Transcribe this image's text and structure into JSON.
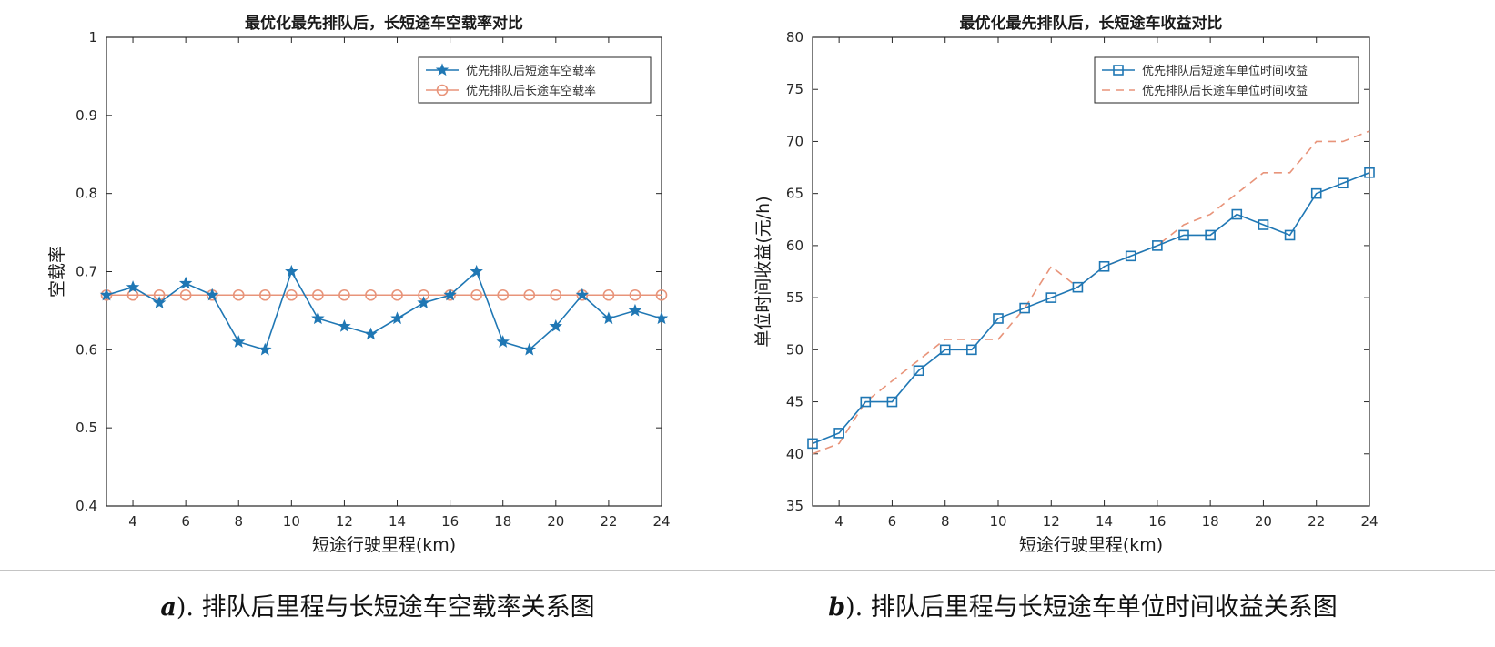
{
  "colors": {
    "blue": "#1f77b4",
    "orange": "#e8947a",
    "axis": "#262626",
    "separator": "#b0b0b0"
  },
  "captions": {
    "a_letter": "a",
    "a_text": "). 排队后里程与长短途车空载率关系图",
    "b_letter": "b",
    "b_text": "). 排队后里程与长短途车单位时间收益关系图"
  },
  "chart_data": [
    {
      "type": "line",
      "title": "最优化最先排队后，长短途车空载率对比",
      "xlabel": "短途行驶里程(km)",
      "ylabel": "空载率",
      "xlim": [
        3,
        24
      ],
      "ylim": [
        0.4,
        1
      ],
      "xticks": [
        4,
        6,
        8,
        10,
        12,
        14,
        16,
        18,
        20,
        22,
        24
      ],
      "xtick_labels": [
        "4",
        "6",
        "8",
        "10",
        "12",
        "14",
        "16",
        "18",
        "20",
        "22",
        "24"
      ],
      "yticks": [
        0.4,
        0.5,
        0.6,
        0.7,
        0.8,
        0.9,
        1
      ],
      "ytick_labels": [
        "0.4",
        "0.5",
        "0.6",
        "0.7",
        "0.8",
        "0.9",
        "1"
      ],
      "legend_position": "top-right",
      "x": [
        3,
        4,
        5,
        6,
        7,
        8,
        9,
        10,
        11,
        12,
        13,
        14,
        15,
        16,
        17,
        18,
        19,
        20,
        21,
        22,
        23,
        24
      ],
      "series": [
        {
          "name": "优先排队后短途车空载率",
          "marker": "star",
          "dash": "solid",
          "color": "#1f77b4",
          "values": [
            0.67,
            0.68,
            0.66,
            0.685,
            0.67,
            0.61,
            0.6,
            0.7,
            0.64,
            0.63,
            0.62,
            0.64,
            0.66,
            0.67,
            0.7,
            0.61,
            0.6,
            0.63,
            0.67,
            0.64,
            0.65,
            0.64
          ]
        },
        {
          "name": "优先排队后长途车空载率",
          "marker": "circle",
          "dash": "solid",
          "color": "#e8947a",
          "values": [
            0.67,
            0.67,
            0.67,
            0.67,
            0.67,
            0.67,
            0.67,
            0.67,
            0.67,
            0.67,
            0.67,
            0.67,
            0.67,
            0.67,
            0.67,
            0.67,
            0.67,
            0.67,
            0.67,
            0.67,
            0.67,
            0.67
          ]
        }
      ]
    },
    {
      "type": "line",
      "title": "最优化最先排队后，长短途车收益对比",
      "xlabel": "短途行驶里程(km)",
      "ylabel": "单位时间收益(元/h)",
      "xlim": [
        3,
        24
      ],
      "ylim": [
        35,
        80
      ],
      "xticks": [
        4,
        6,
        8,
        10,
        12,
        14,
        16,
        18,
        20,
        22,
        24
      ],
      "xtick_labels": [
        "4",
        "6",
        "8",
        "10",
        "12",
        "14",
        "16",
        "18",
        "20",
        "22",
        "24"
      ],
      "yticks": [
        35,
        40,
        45,
        50,
        55,
        60,
        65,
        70,
        75,
        80
      ],
      "ytick_labels": [
        "35",
        "40",
        "45",
        "50",
        "55",
        "60",
        "65",
        "70",
        "75",
        "80"
      ],
      "legend_position": "top-right",
      "x": [
        3,
        4,
        5,
        6,
        7,
        8,
        9,
        10,
        11,
        12,
        13,
        14,
        15,
        16,
        17,
        18,
        19,
        20,
        21,
        22,
        23,
        24
      ],
      "series": [
        {
          "name": "优先排队后短途车单位时间收益",
          "marker": "square",
          "dash": "solid",
          "color": "#1f77b4",
          "values": [
            41,
            42,
            45,
            45,
            48,
            50,
            50,
            53,
            54,
            55,
            56,
            58,
            59,
            60,
            61,
            61,
            63,
            62,
            61,
            65,
            66,
            67
          ]
        },
        {
          "name": "优先排队后长途车单位时间收益",
          "marker": "none",
          "dash": "dashed",
          "color": "#e8947a",
          "values": [
            40,
            41,
            45,
            47,
            49,
            51,
            51,
            51,
            54,
            58,
            56,
            58,
            59,
            60,
            62,
            63,
            65,
            67,
            67,
            70,
            70,
            71
          ]
        }
      ]
    }
  ]
}
